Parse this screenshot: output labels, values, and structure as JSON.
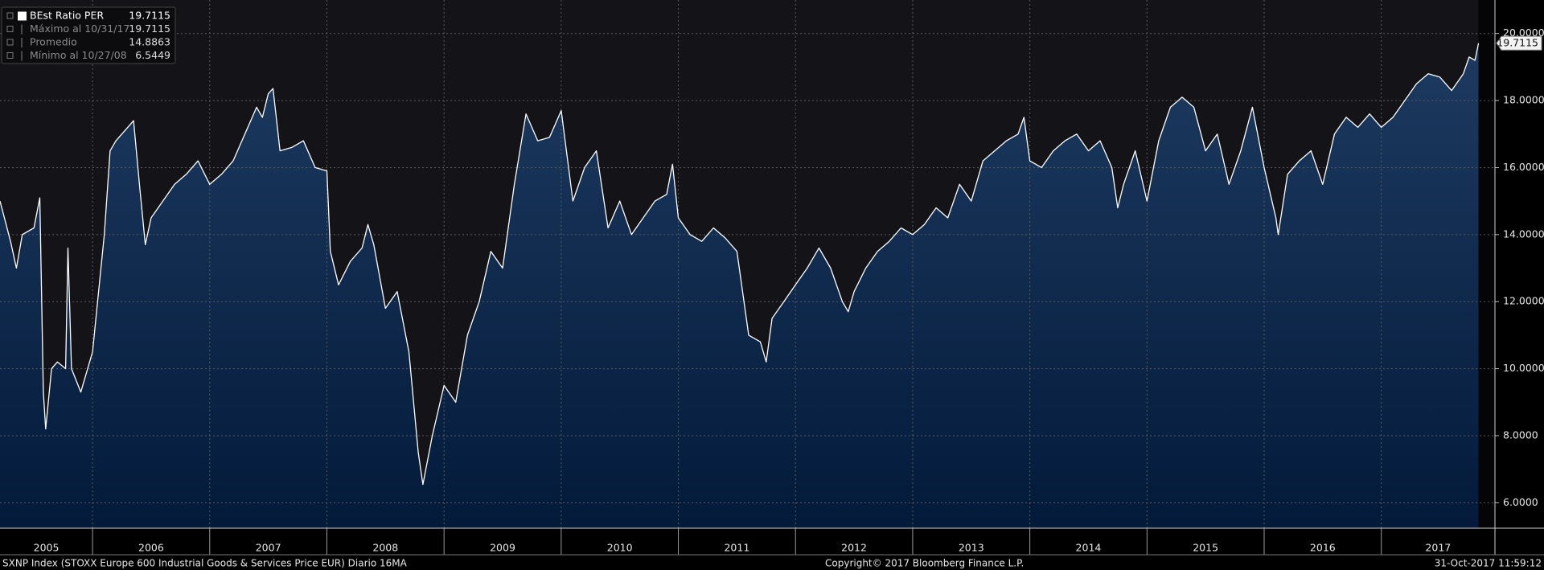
{
  "chart_data": {
    "type": "area",
    "source": "SXNP Index (STOXX Europe 600 Industrial Goods & Services Price EUR)  Diario 16MA",
    "copyright": "Copyright© 2017 Bloomberg Finance L.P.",
    "timestamp": "31-Oct-2017 11:59:12",
    "legend": {
      "items": [
        {
          "label": "BEst Ratio PER",
          "value": 19.7115
        },
        {
          "label": "Máximo al 10/31/17",
          "value": 19.7115
        },
        {
          "label": "Promedio",
          "value": 14.8863
        },
        {
          "label": "Mínimo al 10/27/08",
          "value": 6.5449
        }
      ]
    },
    "x": [
      2005.21,
      2005.3,
      2005.35,
      2005.4,
      2005.5,
      2005.55,
      2005.58,
      2005.6,
      2005.65,
      2005.7,
      2005.77,
      2005.79,
      2005.82,
      2005.9,
      2006.0,
      2006.1,
      2006.15,
      2006.2,
      2006.3,
      2006.35,
      2006.4,
      2006.45,
      2006.5,
      2006.6,
      2006.7,
      2006.8,
      2006.9,
      2007.0,
      2007.1,
      2007.2,
      2007.3,
      2007.4,
      2007.45,
      2007.5,
      2007.54,
      2007.6,
      2007.7,
      2007.8,
      2007.9,
      2008.0,
      2008.03,
      2008.1,
      2008.2,
      2008.3,
      2008.35,
      2008.4,
      2008.5,
      2008.6,
      2008.7,
      2008.78,
      2008.82,
      2008.9,
      2009.0,
      2009.1,
      2009.2,
      2009.3,
      2009.4,
      2009.5,
      2009.6,
      2009.7,
      2009.8,
      2009.9,
      2010.0,
      2010.1,
      2010.2,
      2010.3,
      2010.4,
      2010.5,
      2010.6,
      2010.7,
      2010.8,
      2010.9,
      2010.95,
      2011.0,
      2011.1,
      2011.2,
      2011.3,
      2011.4,
      2011.5,
      2011.6,
      2011.7,
      2011.75,
      2011.8,
      2011.9,
      2012.0,
      2012.1,
      2012.2,
      2012.3,
      2012.4,
      2012.45,
      2012.5,
      2012.6,
      2012.7,
      2012.8,
      2012.9,
      2013.0,
      2013.1,
      2013.2,
      2013.3,
      2013.4,
      2013.5,
      2013.6,
      2013.7,
      2013.8,
      2013.9,
      2013.95,
      2014.0,
      2014.1,
      2014.2,
      2014.3,
      2014.4,
      2014.5,
      2014.6,
      2014.7,
      2014.75,
      2014.8,
      2014.9,
      2015.0,
      2015.1,
      2015.2,
      2015.3,
      2015.4,
      2015.5,
      2015.6,
      2015.7,
      2015.8,
      2015.9,
      2016.0,
      2016.1,
      2016.12,
      2016.2,
      2016.3,
      2016.4,
      2016.5,
      2016.6,
      2016.7,
      2016.8,
      2016.9,
      2017.0,
      2017.1,
      2017.2,
      2017.3,
      2017.4,
      2017.5,
      2017.6,
      2017.7,
      2017.75,
      2017.8,
      2017.83
    ],
    "series": [
      {
        "name": "BEst Ratio PER",
        "color": "#ffffff",
        "values": [
          15.0,
          13.8,
          13.0,
          14.0,
          14.2,
          15.1,
          9.3,
          8.2,
          10.0,
          10.2,
          10.0,
          13.6,
          10.0,
          9.3,
          10.5,
          14.0,
          16.5,
          16.8,
          17.2,
          17.4,
          15.5,
          13.7,
          14.5,
          15.0,
          15.5,
          15.8,
          16.2,
          15.5,
          15.8,
          16.2,
          17.0,
          17.8,
          17.5,
          18.2,
          18.36,
          16.5,
          16.6,
          16.8,
          16.0,
          15.9,
          13.5,
          12.5,
          13.2,
          13.6,
          14.3,
          13.7,
          11.8,
          12.3,
          10.5,
          7.5,
          6.5449,
          8.0,
          9.5,
          9.0,
          11.0,
          12.0,
          13.5,
          13.0,
          15.5,
          17.6,
          16.8,
          16.9,
          17.7,
          15.0,
          16.0,
          16.5,
          14.2,
          15.0,
          14.0,
          14.5,
          15.0,
          15.2,
          16.1,
          14.5,
          14.0,
          13.8,
          14.2,
          13.9,
          13.5,
          11.0,
          10.8,
          10.2,
          11.5,
          12.0,
          12.5,
          13.0,
          13.6,
          13.0,
          12.0,
          11.7,
          12.3,
          13.0,
          13.5,
          13.8,
          14.2,
          14.0,
          14.3,
          14.8,
          14.5,
          15.5,
          15.0,
          16.2,
          16.5,
          16.8,
          17.0,
          17.5,
          16.2,
          16.0,
          16.5,
          16.8,
          17.0,
          16.5,
          16.8,
          16.0,
          14.8,
          15.5,
          16.5,
          15.0,
          16.8,
          17.8,
          18.1,
          17.8,
          16.5,
          17.0,
          15.5,
          16.5,
          17.8,
          16.0,
          14.5,
          14.0,
          15.8,
          16.2,
          16.5,
          15.5,
          17.0,
          17.5,
          17.2,
          17.6,
          17.2,
          17.5,
          18.0,
          18.5,
          18.8,
          18.7,
          18.3,
          18.8,
          19.3,
          19.2,
          19.7115
        ]
      }
    ],
    "xlim": [
      2005.21,
      2017.97
    ],
    "xticks": [
      2005,
      2006,
      2007,
      2008,
      2009,
      2010,
      2011,
      2012,
      2013,
      2014,
      2015,
      2016,
      2017
    ],
    "ylim": [
      5.24,
      21.0
    ],
    "yticks": [
      {
        "value": 6,
        "label": "6.0000"
      },
      {
        "value": 8,
        "label": "8.0000"
      },
      {
        "value": 10,
        "label": "10.0000"
      },
      {
        "value": 12,
        "label": "12.0000"
      },
      {
        "value": 14,
        "label": "14.0000"
      },
      {
        "value": 16,
        "label": "16.0000"
      },
      {
        "value": 18,
        "label": "18.0000"
      },
      {
        "value": 20,
        "label": "20.0000"
      }
    ],
    "grid": true
  }
}
